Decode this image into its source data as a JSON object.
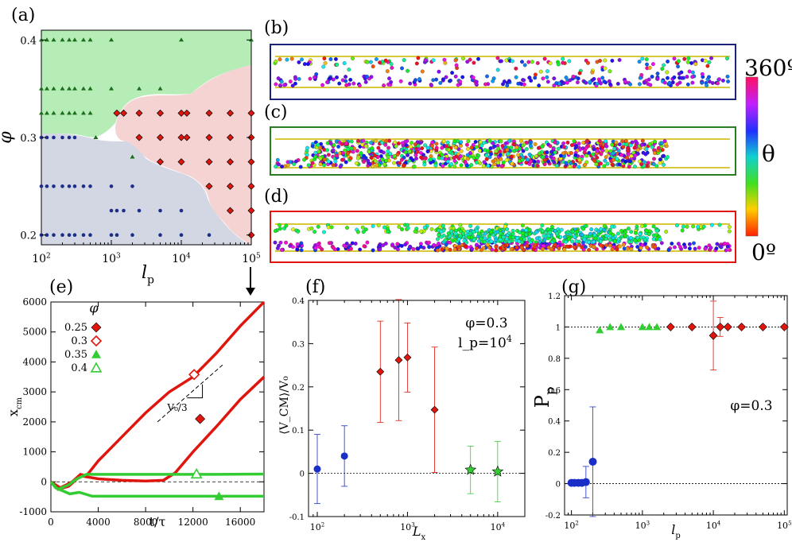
{
  "panels": {
    "a": "(a)",
    "b": "(b)",
    "c": "(c)",
    "d": "(d)",
    "e": "(e)",
    "f": "(f)",
    "g": "(g)"
  },
  "colors": {
    "green_region": "#b6ecb6",
    "red_region": "#f5d3d3",
    "blue_region": "#d3d6e3",
    "green": "#1aa11a",
    "red": "#e0150d",
    "blue": "#1a2ec8",
    "navy": "#1b2a8a",
    "frame_b": "#1b237a",
    "frame_c": "#2b7d21",
    "frame_d": "#e0150d"
  },
  "colorbar": {
    "top_label": "360º",
    "mid_label": "θ",
    "bottom_label": "0º"
  },
  "chart_data": [
    {
      "id": "a",
      "type": "scatter",
      "title": "",
      "xlabel": "l_p",
      "ylabel": "φ",
      "xscale": "log",
      "xlim": [
        100,
        100000
      ],
      "ylim": [
        0.19,
        0.41
      ],
      "xticks": [
        "10^2",
        "10^3",
        "10^4",
        "10^5"
      ],
      "yticks": [
        "0.2",
        "0.3",
        "0.4"
      ],
      "series": [
        {
          "marker": "triangle",
          "color": "#1b6e1b",
          "points": [
            [
              100,
              0.4
            ],
            [
              120,
              0.4
            ],
            [
              150,
              0.4
            ],
            [
              200,
              0.4
            ],
            [
              250,
              0.4
            ],
            [
              300,
              0.4
            ],
            [
              400,
              0.4
            ],
            [
              500,
              0.4
            ],
            [
              1000,
              0.4
            ],
            [
              10000,
              0.4
            ],
            [
              100000,
              0.4
            ],
            [
              100,
              0.35
            ],
            [
              120,
              0.35
            ],
            [
              150,
              0.35
            ],
            [
              200,
              0.35
            ],
            [
              250,
              0.35
            ],
            [
              300,
              0.35
            ],
            [
              400,
              0.35
            ],
            [
              500,
              0.35
            ],
            [
              1000,
              0.35
            ],
            [
              2500,
              0.35
            ],
            [
              5000,
              0.35
            ],
            [
              100,
              0.325
            ],
            [
              120,
              0.325
            ],
            [
              150,
              0.325
            ],
            [
              200,
              0.325
            ],
            [
              250,
              0.325
            ],
            [
              300,
              0.325
            ],
            [
              400,
              0.325
            ],
            [
              500,
              0.325
            ],
            [
              600,
              0.3
            ],
            [
              2000,
              0.28
            ]
          ]
        },
        {
          "marker": "diamond",
          "color": "#e0150d",
          "points": [
            [
              1200,
              0.325
            ],
            [
              1500,
              0.325
            ],
            [
              2500,
              0.325
            ],
            [
              5000,
              0.325
            ],
            [
              10000,
              0.325
            ],
            [
              12000,
              0.325
            ],
            [
              25000,
              0.325
            ],
            [
              50000,
              0.325
            ],
            [
              100000,
              0.325
            ],
            [
              2500,
              0.3
            ],
            [
              5000,
              0.3
            ],
            [
              10000,
              0.3
            ],
            [
              12000,
              0.3
            ],
            [
              25000,
              0.3
            ],
            [
              50000,
              0.3
            ],
            [
              100000,
              0.3
            ],
            [
              5000,
              0.275
            ],
            [
              10000,
              0.275
            ],
            [
              25000,
              0.275
            ],
            [
              50000,
              0.275
            ],
            [
              100000,
              0.275
            ],
            [
              25000,
              0.25
            ],
            [
              50000,
              0.25
            ],
            [
              100000,
              0.25
            ],
            [
              50000,
              0.225
            ],
            [
              100000,
              0.225
            ],
            [
              100000,
              0.2
            ]
          ]
        },
        {
          "marker": "circle",
          "color": "#1a2e8a",
          "points": [
            [
              100,
              0.3
            ],
            [
              120,
              0.3
            ],
            [
              150,
              0.3
            ],
            [
              200,
              0.3
            ],
            [
              250,
              0.3
            ],
            [
              300,
              0.3
            ],
            [
              100,
              0.25
            ],
            [
              120,
              0.25
            ],
            [
              150,
              0.25
            ],
            [
              200,
              0.25
            ],
            [
              250,
              0.25
            ],
            [
              300,
              0.25
            ],
            [
              400,
              0.25
            ],
            [
              500,
              0.25
            ],
            [
              1000,
              0.25
            ],
            [
              2000,
              0.25
            ],
            [
              1000,
              0.225
            ],
            [
              1200,
              0.225
            ],
            [
              1500,
              0.225
            ],
            [
              2500,
              0.225
            ],
            [
              5000,
              0.225
            ],
            [
              10000,
              0.225
            ],
            [
              100,
              0.2
            ],
            [
              120,
              0.2
            ],
            [
              150,
              0.2
            ],
            [
              200,
              0.2
            ],
            [
              250,
              0.2
            ],
            [
              300,
              0.2
            ],
            [
              400,
              0.2
            ],
            [
              500,
              0.2
            ],
            [
              1000,
              0.2
            ],
            [
              1200,
              0.2
            ],
            [
              2000,
              0.2
            ],
            [
              5000,
              0.2
            ],
            [
              10000,
              0.2
            ],
            [
              25000,
              0.2
            ]
          ]
        }
      ]
    },
    {
      "id": "e",
      "type": "line",
      "title": "",
      "xlabel": "t/τ",
      "ylabel": "x_cm",
      "xlim": [
        0,
        18000
      ],
      "ylim": [
        -1000,
        6000
      ],
      "xticks": [
        "0",
        "4000",
        "8000",
        "12000",
        "16000"
      ],
      "yticks": [
        "-1000",
        "0",
        "1000",
        "2000",
        "3000",
        "4000",
        "5000",
        "6000"
      ],
      "legend_title": "φ",
      "annotation": "V₀/3",
      "series": [
        {
          "name": "0.25",
          "marker": "filled-diamond",
          "color": "#e0150d",
          "points": [
            [
              0,
              0
            ],
            [
              600,
              -250
            ],
            [
              1500,
              -150
            ],
            [
              2500,
              200
            ],
            [
              4000,
              100
            ],
            [
              6000,
              50
            ],
            [
              8000,
              30
            ],
            [
              9500,
              50
            ],
            [
              10500,
              300
            ],
            [
              12000,
              1000
            ],
            [
              14000,
              1850
            ],
            [
              16000,
              2750
            ],
            [
              18000,
              3500
            ]
          ]
        },
        {
          "name": "0.3",
          "marker": "open-diamond",
          "color": "#e0150d",
          "points": [
            [
              0,
              0
            ],
            [
              800,
              -200
            ],
            [
              1800,
              0
            ],
            [
              2500,
              250
            ],
            [
              3000,
              200
            ],
            [
              4000,
              700
            ],
            [
              6000,
              1500
            ],
            [
              8000,
              2300
            ],
            [
              10000,
              3000
            ],
            [
              12000,
              3500
            ],
            [
              14000,
              4300
            ],
            [
              16000,
              5200
            ],
            [
              18000,
              6000
            ]
          ]
        },
        {
          "name": "0.35",
          "marker": "filled-triangle",
          "color": "#33cc33",
          "points": [
            [
              0,
              0
            ],
            [
              400,
              -200
            ],
            [
              1000,
              -300
            ],
            [
              1600,
              -400
            ],
            [
              2400,
              -350
            ],
            [
              3500,
              -480
            ],
            [
              6000,
              -480
            ],
            [
              10000,
              -480
            ],
            [
              14000,
              -480
            ],
            [
              18000,
              -480
            ]
          ]
        },
        {
          "name": "0.4",
          "marker": "open-triangle",
          "color": "#33cc33",
          "points": [
            [
              0,
              0
            ],
            [
              600,
              -250
            ],
            [
              1500,
              -100
            ],
            [
              2200,
              100
            ],
            [
              3000,
              250
            ],
            [
              6000,
              250
            ],
            [
              10000,
              250
            ],
            [
              14000,
              250
            ],
            [
              18000,
              260
            ]
          ]
        }
      ]
    },
    {
      "id": "f",
      "type": "scatter",
      "title": "",
      "xlabel": "L_x",
      "ylabel": "⟨V_CM⟩/V₀",
      "xscale": "log",
      "xlim": [
        80,
        20000
      ],
      "ylim": [
        -0.1,
        0.4
      ],
      "xticks": [
        "10^2",
        "10^3",
        "10^4"
      ],
      "yticks": [
        "-0.1",
        "0",
        "0.1",
        "0.2",
        "0.3",
        "0.4"
      ],
      "annotation_1": "φ=0.3",
      "annotation_2": "l_p=10^4",
      "series": [
        {
          "marker": "circle",
          "color": "#1a2ec8",
          "points": [
            {
              "x": 100,
              "y": 0.01,
              "err": 0.08
            },
            {
              "x": 200,
              "y": 0.04,
              "err": 0.07
            }
          ]
        },
        {
          "marker": "diamond",
          "color": "#e0150d",
          "points": [
            {
              "x": 500,
              "y": 0.235,
              "err": 0.117
            },
            {
              "x": 800,
              "y": 0.262,
              "err": 0.14
            },
            {
              "x": 1000,
              "y": 0.268,
              "err": 0.08
            },
            {
              "x": 2000,
              "y": 0.147,
              "err": 0.145
            }
          ]
        },
        {
          "marker": "star",
          "color": "#33cc33",
          "points": [
            {
              "x": 5000,
              "y": 0.008,
              "err": 0.055
            },
            {
              "x": 10000,
              "y": 0.004,
              "err": 0.07
            }
          ]
        }
      ]
    },
    {
      "id": "g",
      "type": "scatter",
      "title": "",
      "xlabel": "l_p",
      "ylabel": "P_p",
      "xscale": "log",
      "xlim": [
        80,
        110000
      ],
      "ylim": [
        -0.2,
        1.2
      ],
      "xticks": [
        "10^2",
        "10^3",
        "10^4",
        "10^5"
      ],
      "yticks": [
        "-0.2",
        "0",
        "0.2",
        "0.4",
        "0.6",
        "0.8",
        "1",
        "1.2"
      ],
      "annotation": "φ=0.3",
      "series": [
        {
          "marker": "circle",
          "color": "#1a2ec8",
          "points": [
            {
              "x": 100,
              "y": 0.005,
              "err": 0
            },
            {
              "x": 110,
              "y": 0.005,
              "err": 0
            },
            {
              "x": 125,
              "y": 0.005,
              "err": 0
            },
            {
              "x": 140,
              "y": 0.005,
              "err": 0
            },
            {
              "x": 160,
              "y": 0.01,
              "err": 0.1
            },
            {
              "x": 200,
              "y": 0.14,
              "err": 0.35
            }
          ]
        },
        {
          "marker": "triangle",
          "color": "#33cc33",
          "points": [
            {
              "x": 250,
              "y": 0.98,
              "err": 0
            },
            {
              "x": 350,
              "y": 1.0,
              "err": 0
            },
            {
              "x": 500,
              "y": 1.0,
              "err": 0
            },
            {
              "x": 1000,
              "y": 1.0,
              "err": 0
            },
            {
              "x": 1250,
              "y": 1.0,
              "err": 0
            },
            {
              "x": 1600,
              "y": 1.0,
              "err": 0
            }
          ]
        },
        {
          "marker": "diamond",
          "color": "#e0150d",
          "points": [
            {
              "x": 2500,
              "y": 1.0,
              "err": 0
            },
            {
              "x": 5000,
              "y": 1.0,
              "err": 0
            },
            {
              "x": 10000,
              "y": 0.945,
              "err": 0.22
            },
            {
              "x": 12500,
              "y": 1.0,
              "err": 0.06
            },
            {
              "x": 16000,
              "y": 1.0,
              "err": 0
            },
            {
              "x": 25000,
              "y": 1.0,
              "err": 0
            },
            {
              "x": 50000,
              "y": 1.0,
              "err": 0
            },
            {
              "x": 100000,
              "y": 1.0,
              "err": 0
            }
          ]
        }
      ]
    }
  ]
}
